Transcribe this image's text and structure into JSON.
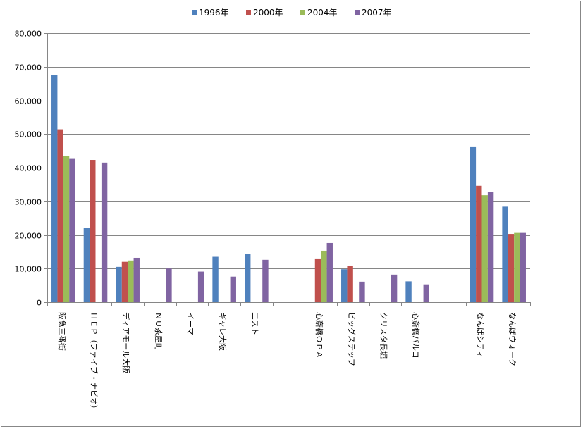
{
  "chart_data": {
    "type": "bar",
    "title": "",
    "xlabel": "",
    "ylabel": "",
    "ylim": [
      0,
      80000
    ],
    "yticks": [
      0,
      10000,
      20000,
      30000,
      40000,
      50000,
      60000,
      70000,
      80000
    ],
    "ytick_labels": [
      "0",
      "10,000",
      "20,000",
      "30,000",
      "40,000",
      "50,000",
      "60,000",
      "70,000",
      "80,000"
    ],
    "grid": "horizontal",
    "legend_position": "top",
    "categories": [
      "阪急三番街",
      "ＨＥＰ（ファイブ・ナビオ）",
      "ディアモール大阪",
      "ＮＵ茶屋町",
      "イーマ",
      "ギャレ大阪",
      "エスト",
      "",
      "心斎橋ＯＰＡ",
      "ビッグステップ",
      "クリスタ長堀",
      "心斎橋パルコ",
      "",
      "なんばシティ",
      "なんばウォーク"
    ],
    "series": [
      {
        "name": "1996年",
        "color": "#4f81bd",
        "values": [
          67500,
          22000,
          10500,
          null,
          null,
          13500,
          14300,
          null,
          null,
          9800,
          null,
          6200,
          null,
          46300,
          28400
        ]
      },
      {
        "name": "2000年",
        "color": "#c0504d",
        "values": [
          51400,
          42300,
          12000,
          null,
          null,
          null,
          null,
          null,
          13000,
          10700,
          null,
          null,
          null,
          34600,
          20300
        ]
      },
      {
        "name": "2004年",
        "color": "#9bbb59",
        "values": [
          43500,
          null,
          12400,
          null,
          null,
          null,
          null,
          null,
          15300,
          null,
          null,
          null,
          null,
          31800,
          20600
        ]
      },
      {
        "name": "2007年",
        "color": "#8064a2",
        "values": [
          42600,
          41500,
          13200,
          10000,
          9100,
          7600,
          12600,
          null,
          17600,
          6100,
          8200,
          5300,
          null,
          32800,
          20600
        ]
      }
    ]
  }
}
